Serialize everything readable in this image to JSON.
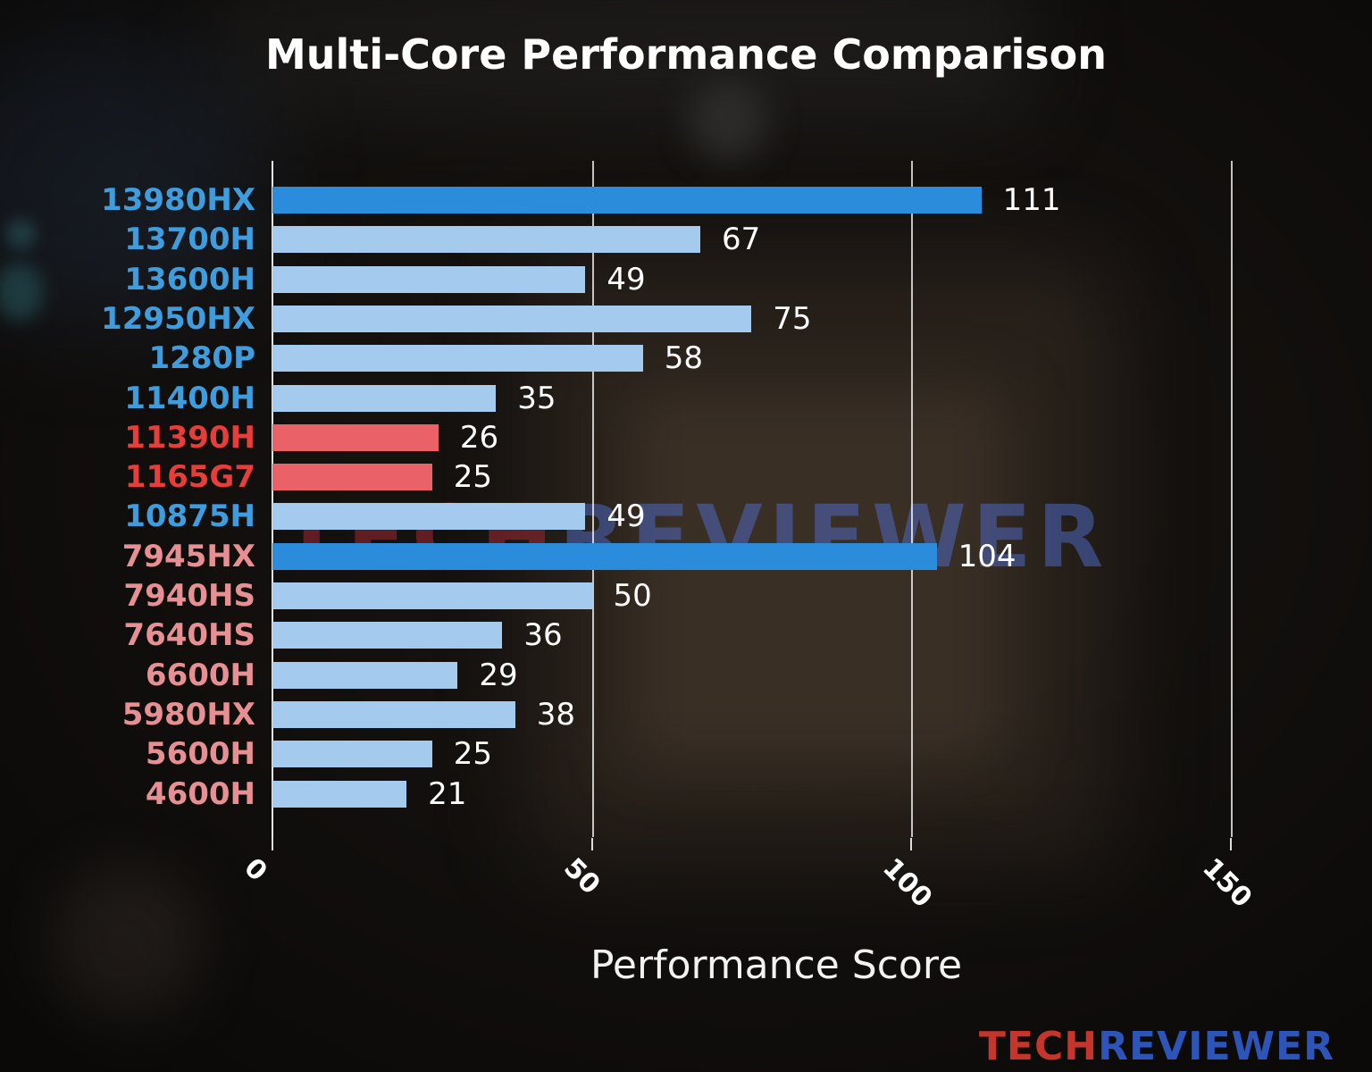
{
  "page": {
    "title": "Multi-Core Performance Comparison"
  },
  "chart_data": {
    "type": "bar",
    "orientation": "horizontal",
    "title": "Multi-Core Performance Comparison",
    "xlabel": "Performance Score",
    "ylabel": "",
    "xlim": [
      0,
      157
    ],
    "xticks": [
      0,
      50,
      100,
      150
    ],
    "grid": true,
    "legend": false,
    "categories": [
      "13980HX",
      "13700H",
      "13600H",
      "12950HX",
      "1280P",
      "11400H",
      "11390H",
      "1165G7",
      "10875H",
      "7945HX",
      "7940HS",
      "7640HS",
      "6600H",
      "5980HX",
      "5600H",
      "4600H"
    ],
    "values": [
      111,
      67,
      49,
      75,
      58,
      35,
      26,
      25,
      49,
      104,
      50,
      36,
      29,
      38,
      25,
      21
    ],
    "bar_colors": [
      "#2b8cdc",
      "#a4cbee",
      "#a4cbee",
      "#a4cbee",
      "#a4cbee",
      "#a4cbee",
      "#ea6167",
      "#ea6167",
      "#a4cbee",
      "#2b8cdc",
      "#a4cbee",
      "#a4cbee",
      "#a4cbee",
      "#a4cbee",
      "#a4cbee",
      "#a4cbee"
    ],
    "label_colors": [
      "#3f9ddd",
      "#3f9ddd",
      "#3f9ddd",
      "#3f9ddd",
      "#3f9ddd",
      "#3f9ddd",
      "#e63e3a",
      "#e63e3a",
      "#3f9ddd",
      "#e69093",
      "#e69093",
      "#e69093",
      "#e69093",
      "#e69093",
      "#e69093",
      "#e69093"
    ],
    "value_label_color": "#ffffff"
  },
  "watermark": {
    "tech": "TECH",
    "reviewer": "REVIEWER"
  },
  "logo": {
    "tech": "TECH",
    "reviewer": "REVIEWER"
  },
  "colors": {
    "background": "#14110f",
    "title_text": "#ffffff",
    "axis_text": "#ffffff",
    "gridline": "#ffffff",
    "bar_strong_blue": "#2b8cdc",
    "bar_light_blue": "#a4cbee",
    "bar_red": "#ea6167",
    "label_blue": "#3f9ddd",
    "label_red": "#e63e3a",
    "label_salmon": "#e69093",
    "logo_red": "#c4352c",
    "logo_blue": "#2d54b8"
  }
}
